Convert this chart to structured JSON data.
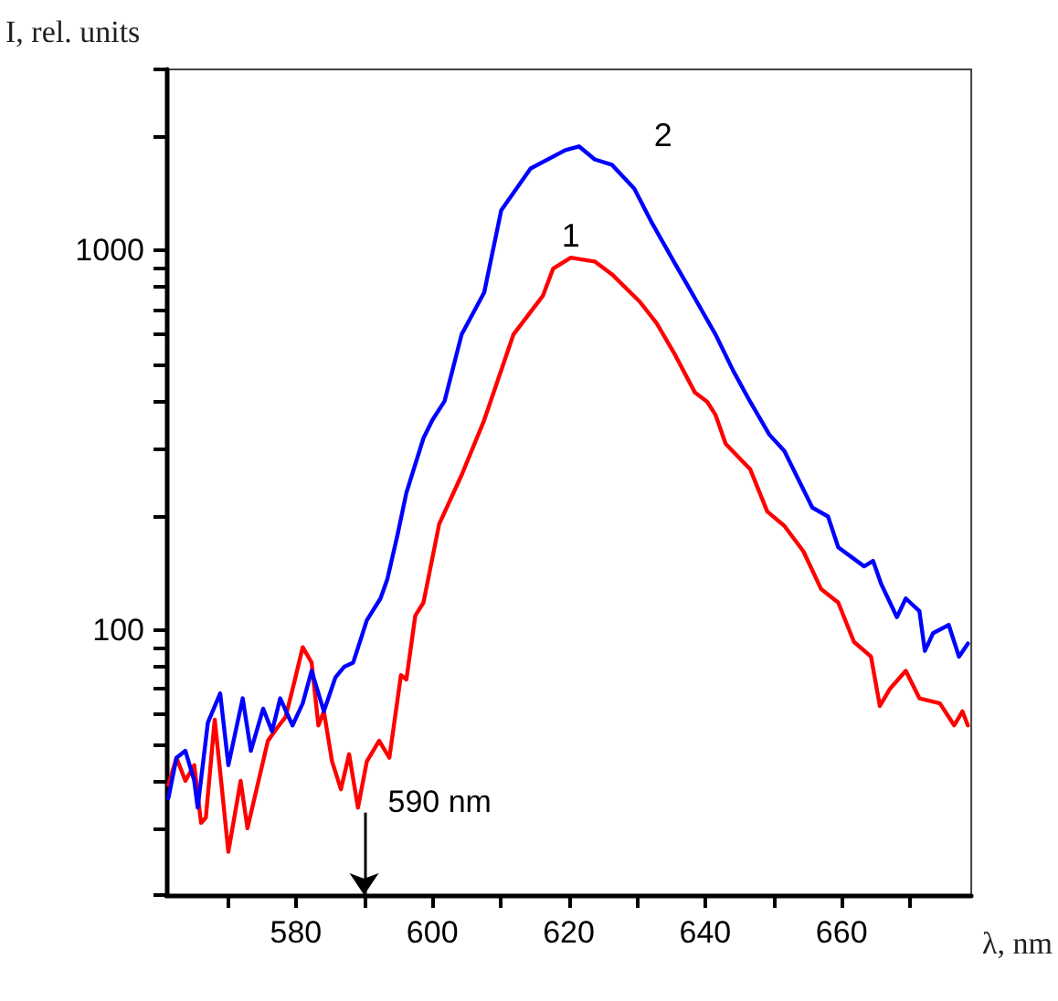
{
  "chart_data": {
    "type": "line",
    "xlabel": "λ, nm",
    "ylabel": "I, rel. units",
    "log": "y",
    "grid": false,
    "legend": false,
    "marker": "none",
    "line_style": "solid",
    "xlim": [
      561,
      679
    ],
    "ylim": [
      20,
      3000
    ],
    "xticks": [
      {
        "value": 570,
        "label": null
      },
      580,
      {
        "value": 590,
        "label": null
      },
      600,
      {
        "value": 610,
        "label": null
      },
      620,
      {
        "value": 630,
        "label": null
      },
      640,
      {
        "value": 650,
        "label": null
      },
      660,
      {
        "value": 670,
        "label": null
      }
    ],
    "yticks": [
      {
        "value": 20,
        "label": null
      },
      {
        "value": 30,
        "label": null
      },
      {
        "value": 40,
        "label": null
      },
      {
        "value": 50,
        "label": null
      },
      {
        "value": 60,
        "label": null
      },
      {
        "value": 70,
        "label": null
      },
      {
        "value": 80,
        "label": null
      },
      {
        "value": 90,
        "label": null
      },
      100,
      {
        "value": 200,
        "label": null
      },
      {
        "value": 300,
        "label": null
      },
      {
        "value": 400,
        "label": null
      },
      {
        "value": 500,
        "label": null
      },
      {
        "value": 600,
        "label": null
      },
      {
        "value": 700,
        "label": null
      },
      {
        "value": 800,
        "label": null
      },
      {
        "value": 900,
        "label": null
      },
      1000,
      {
        "value": 2000,
        "label": null
      },
      {
        "value": 3000,
        "label": null
      }
    ],
    "annotations": [
      {
        "text": "590 nm",
        "x": 590,
        "y": 33
      }
    ],
    "series": [
      {
        "name": "1",
        "color": "#ff0000",
        "x": [
          561.3,
          562.5,
          563.8,
          565.1,
          566.1,
          566.8,
          568.1,
          569.1,
          570.1,
          571.9,
          572.9,
          575.9,
          577.2,
          578.5,
          579.7,
          581.0,
          582.3,
          583.3,
          584.1,
          585.3,
          586.6,
          587.8,
          589.1,
          590.4,
          592.2,
          593.7,
          595.4,
          596.2,
          597.5,
          598.7,
          601.0,
          604.3,
          607.6,
          611.9,
          616.2,
          617.7,
          620.3,
          623.8,
          626.3,
          630.4,
          632.9,
          635.4,
          638.5,
          640.3,
          641.5,
          643.0,
          646.6,
          649.1,
          651.6,
          654.4,
          657.0,
          659.5,
          661.8,
          664.3,
          665.6,
          667.1,
          669.4,
          671.4,
          674.4,
          676.5,
          677.7,
          678.5
        ],
        "values": [
          39,
          46,
          40,
          44,
          31,
          32,
          58,
          39,
          26,
          40,
          30,
          51,
          55,
          59,
          72,
          90,
          82,
          56,
          61,
          45,
          38,
          47,
          34,
          45,
          51,
          46,
          76,
          74,
          109,
          118,
          190,
          256,
          357,
          601,
          759,
          895,
          957,
          935,
          866,
          733,
          642,
          538,
          422,
          399,
          369,
          309,
          265,
          205,
          188,
          161,
          128,
          118,
          93,
          85,
          63,
          70,
          78,
          66,
          64,
          56,
          61,
          56
        ]
      },
      {
        "name": "2",
        "color": "#0000ff",
        "x": [
          561.3,
          562.5,
          563.8,
          565.1,
          565.6,
          567.1,
          568.9,
          570.1,
          572.2,
          573.4,
          575.2,
          576.5,
          577.7,
          579.5,
          581.0,
          582.3,
          584.1,
          585.8,
          587.1,
          588.4,
          590.4,
          592.4,
          593.4,
          594.9,
          596.2,
          598.7,
          600.0,
          601.8,
          604.3,
          607.6,
          610.1,
          614.4,
          619.5,
          621.5,
          623.8,
          626.3,
          629.6,
          632.2,
          635.4,
          638.0,
          641.5,
          644.1,
          646.6,
          649.4,
          651.6,
          655.7,
          658.0,
          659.5,
          663.3,
          664.6,
          665.8,
          668.1,
          669.4,
          671.4,
          672.2,
          673.4,
          675.7,
          677.2,
          678.5
        ],
        "values": [
          36,
          46,
          48,
          40,
          34,
          57,
          68,
          44,
          66,
          48,
          62,
          54,
          66,
          56,
          64,
          78,
          61,
          75,
          80,
          82,
          106,
          121,
          136,
          178,
          230,
          320,
          357,
          401,
          601,
          775,
          1276,
          1644,
          1838,
          1880,
          1738,
          1683,
          1456,
          1181,
          935,
          775,
          601,
          482,
          399,
          327,
          296,
          210,
          199,
          165,
          147,
          152,
          132,
          108,
          121,
          112,
          88,
          98,
          103,
          85,
          92
        ]
      }
    ]
  }
}
